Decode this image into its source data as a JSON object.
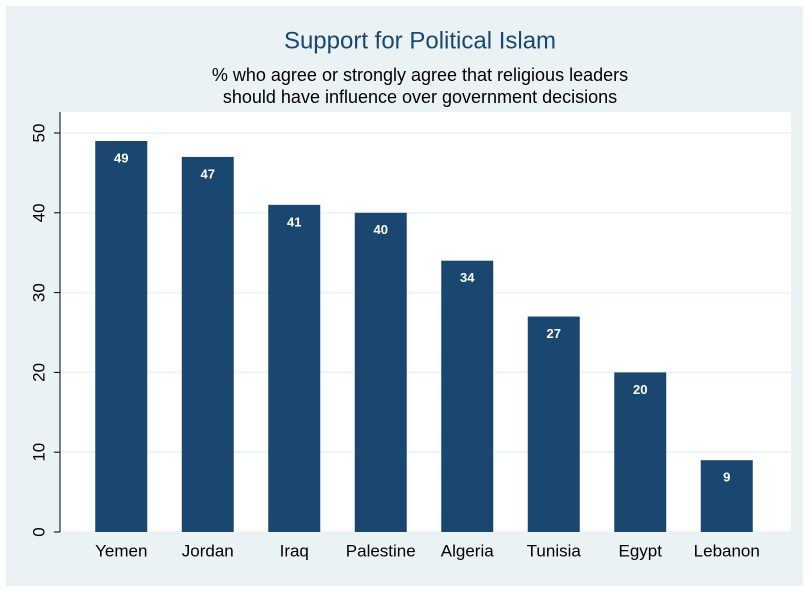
{
  "chart_data": {
    "type": "bar",
    "title": "Support for Political Islam",
    "subtitle": [
      "% who agree or strongly agree that religious leaders",
      "should have influence over government decisions"
    ],
    "categories": [
      "Yemen",
      "Jordan",
      "Iraq",
      "Palestine",
      "Algeria",
      "Tunisia",
      "Egypt",
      "Lebanon"
    ],
    "values": [
      49,
      47,
      41,
      40,
      34,
      27,
      20,
      9
    ],
    "color": "#1a476f",
    "ylim": [
      0,
      50
    ],
    "yticks": [
      0,
      10,
      20,
      30,
      40,
      50
    ],
    "grid": true
  }
}
